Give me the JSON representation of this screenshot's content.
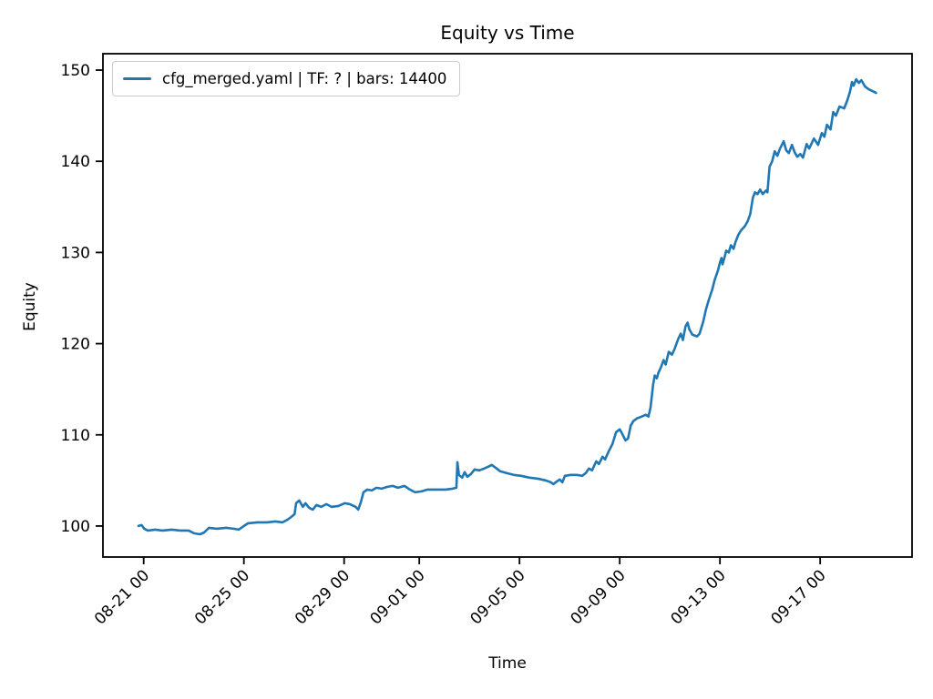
{
  "figure": {
    "background": "#ffffff",
    "frame_color": "#000000"
  },
  "chart_data": {
    "type": "line",
    "title": "Equity vs Time",
    "xlabel": "Time",
    "ylabel": "Equity",
    "grid": false,
    "legend_position": "upper left",
    "x_tick_labels": [
      "08-21 00",
      "08-25 00",
      "08-29 00",
      "09-01 00",
      "09-05 00",
      "09-09 00",
      "09-13 00",
      "09-17 00"
    ],
    "y_tick_labels": [
      "100",
      "110",
      "120",
      "130",
      "140",
      "150"
    ],
    "xlim": [
      "08-19 09:00",
      "09-20 16:00"
    ],
    "ylim": [
      96.6,
      151.8
    ],
    "series": [
      {
        "name": "cfg_merged.yaml | TF: ? | bars: 14400",
        "color": "#1f77b4",
        "points": [
          [
            "08-20 19:00",
            100.0
          ],
          [
            "08-20 22:00",
            100.1
          ],
          [
            "08-21 00:30",
            99.7
          ],
          [
            "08-21 04:00",
            99.5
          ],
          [
            "08-21 11:00",
            99.6
          ],
          [
            "08-21 18:00",
            99.5
          ],
          [
            "08-22 03:00",
            99.6
          ],
          [
            "08-22 11:00",
            99.5
          ],
          [
            "08-22 19:00",
            99.5
          ],
          [
            "08-23 00:30",
            99.2
          ],
          [
            "08-23 06:00",
            99.1
          ],
          [
            "08-23 10:00",
            99.3
          ],
          [
            "08-23 14:30",
            99.8
          ],
          [
            "08-23 22:00",
            99.7
          ],
          [
            "08-24 07:00",
            99.8
          ],
          [
            "08-24 14:00",
            99.7
          ],
          [
            "08-24 19:00",
            99.6
          ],
          [
            "08-25 00:00",
            100.0
          ],
          [
            "08-25 04:00",
            100.3
          ],
          [
            "08-25 13:00",
            100.4
          ],
          [
            "08-25 22:00",
            100.4
          ],
          [
            "08-26 06:00",
            100.5
          ],
          [
            "08-26 13:00",
            100.4
          ],
          [
            "08-26 18:00",
            100.7
          ],
          [
            "08-26 22:30",
            101.1
          ],
          [
            "08-27 00:30",
            101.3
          ],
          [
            "08-27 02:00",
            102.5
          ],
          [
            "08-27 05:00",
            102.8
          ],
          [
            "08-27 08:30",
            102.1
          ],
          [
            "08-27 11:00",
            102.5
          ],
          [
            "08-27 14:30",
            102.0
          ],
          [
            "08-27 18:00",
            101.8
          ],
          [
            "08-27 21:30",
            102.3
          ],
          [
            "08-28 02:00",
            102.1
          ],
          [
            "08-28 07:00",
            102.4
          ],
          [
            "08-28 12:00",
            102.1
          ],
          [
            "08-28 18:30",
            102.2
          ],
          [
            "08-29 00:30",
            102.5
          ],
          [
            "08-29 05:30",
            102.4
          ],
          [
            "08-29 11:00",
            102.1
          ],
          [
            "08-29 13:30",
            101.8
          ],
          [
            "08-29 16:00",
            102.6
          ],
          [
            "08-29 18:30",
            103.7
          ],
          [
            "08-29 22:00",
            104.0
          ],
          [
            "08-30 02:30",
            103.9
          ],
          [
            "08-30 07:00",
            104.2
          ],
          [
            "08-30 12:00",
            104.1
          ],
          [
            "08-30 17:30",
            104.3
          ],
          [
            "08-30 22:30",
            104.4
          ],
          [
            "08-31 03:30",
            104.2
          ],
          [
            "08-31 10:00",
            104.4
          ],
          [
            "08-31 15:00",
            104.0
          ],
          [
            "08-31 20:00",
            103.7
          ],
          [
            "09-01 02:00",
            103.8
          ],
          [
            "09-01 08:00",
            104.0
          ],
          [
            "09-01 17:00",
            104.0
          ],
          [
            "09-02 01:00",
            104.0
          ],
          [
            "09-02 08:00",
            104.1
          ],
          [
            "09-02 11:30",
            104.2
          ],
          [
            "09-02 12:30",
            107.0
          ],
          [
            "09-02 14:00",
            105.6
          ],
          [
            "09-02 17:00",
            105.3
          ],
          [
            "09-02 19:30",
            105.9
          ],
          [
            "09-02 22:00",
            105.4
          ],
          [
            "09-03 01:30",
            105.7
          ],
          [
            "09-03 05:00",
            106.2
          ],
          [
            "09-03 09:30",
            106.1
          ],
          [
            "09-03 14:00",
            106.3
          ],
          [
            "09-03 18:00",
            106.5
          ],
          [
            "09-03 21:30",
            106.7
          ],
          [
            "09-04 01:00",
            106.4
          ],
          [
            "09-04 05:30",
            106.0
          ],
          [
            "09-04 11:30",
            105.8
          ],
          [
            "09-04 18:30",
            105.6
          ],
          [
            "09-05 01:30",
            105.5
          ],
          [
            "09-05 09:30",
            105.3
          ],
          [
            "09-05 17:00",
            105.2
          ],
          [
            "09-06 01:00",
            105.0
          ],
          [
            "09-06 06:00",
            104.8
          ],
          [
            "09-06 08:30",
            104.6
          ],
          [
            "09-06 12:00",
            104.9
          ],
          [
            "09-06 14:30",
            105.1
          ],
          [
            "09-06 17:00",
            104.8
          ],
          [
            "09-06 19:30",
            105.5
          ],
          [
            "09-07 01:00",
            105.6
          ],
          [
            "09-07 07:00",
            105.6
          ],
          [
            "09-07 12:00",
            105.5
          ],
          [
            "09-07 15:30",
            105.8
          ],
          [
            "09-07 18:30",
            106.3
          ],
          [
            "09-07 21:30",
            106.1
          ],
          [
            "09-08 01:30",
            107.1
          ],
          [
            "09-08 04:00",
            106.8
          ],
          [
            "09-08 07:30",
            107.6
          ],
          [
            "09-08 10:00",
            107.3
          ],
          [
            "09-08 13:30",
            108.2
          ],
          [
            "09-08 17:00",
            109.0
          ],
          [
            "09-08 20:30",
            110.3
          ],
          [
            "09-09 00:00",
            110.6
          ],
          [
            "09-09 02:30",
            110.1
          ],
          [
            "09-09 05:30",
            109.4
          ],
          [
            "09-09 08:00",
            109.6
          ],
          [
            "09-09 10:30",
            111.0
          ],
          [
            "09-09 13:00",
            111.5
          ],
          [
            "09-09 16:30",
            111.8
          ],
          [
            "09-09 21:00",
            112.0
          ],
          [
            "09-10 01:00",
            112.2
          ],
          [
            "09-10 03:30",
            112.0
          ],
          [
            "09-10 05:30",
            113.0
          ],
          [
            "09-10 08:00",
            115.5
          ],
          [
            "09-10 09:30",
            116.5
          ],
          [
            "09-10 11:30",
            116.2
          ],
          [
            "09-10 13:00",
            116.8
          ],
          [
            "09-10 15:30",
            117.4
          ],
          [
            "09-10 18:00",
            118.2
          ],
          [
            "09-10 20:00",
            117.7
          ],
          [
            "09-10 23:00",
            119.1
          ],
          [
            "09-11 02:00",
            118.8
          ],
          [
            "09-11 04:30",
            119.4
          ],
          [
            "09-11 08:00",
            120.5
          ],
          [
            "09-11 10:30",
            121.1
          ],
          [
            "09-11 12:30",
            120.4
          ],
          [
            "09-11 15:00",
            121.9
          ],
          [
            "09-11 17:00",
            122.3
          ],
          [
            "09-11 18:30",
            121.6
          ],
          [
            "09-11 21:30",
            121.0
          ],
          [
            "09-12 02:00",
            120.8
          ],
          [
            "09-12 04:30",
            121.1
          ],
          [
            "09-12 08:00",
            122.4
          ],
          [
            "09-12 10:30",
            123.7
          ],
          [
            "09-12 13:00",
            124.7
          ],
          [
            "09-12 16:30",
            125.9
          ],
          [
            "09-12 19:00",
            127.0
          ],
          [
            "09-12 22:00",
            128.0
          ],
          [
            "09-13 00:00",
            128.9
          ],
          [
            "09-13 01:30",
            129.4
          ],
          [
            "09-13 02:30",
            128.7
          ],
          [
            "09-13 04:30",
            129.5
          ],
          [
            "09-13 06:00",
            130.2
          ],
          [
            "09-13 08:30",
            130.0
          ],
          [
            "09-13 10:30",
            130.8
          ],
          [
            "09-13 13:00",
            130.4
          ],
          [
            "09-13 15:00",
            131.2
          ],
          [
            "09-13 17:30",
            131.9
          ],
          [
            "09-13 20:00",
            132.4
          ],
          [
            "09-14 00:00",
            132.9
          ],
          [
            "09-14 02:30",
            133.4
          ],
          [
            "09-14 05:00",
            134.2
          ],
          [
            "09-14 07:30",
            136.0
          ],
          [
            "09-14 09:30",
            136.6
          ],
          [
            "09-14 12:00",
            136.4
          ],
          [
            "09-14 14:30",
            136.9
          ],
          [
            "09-14 17:00",
            136.4
          ],
          [
            "09-14 20:00",
            136.8
          ],
          [
            "09-14 21:30",
            136.6
          ],
          [
            "09-14 23:30",
            139.4
          ],
          [
            "09-15 02:00",
            140.0
          ],
          [
            "09-15 04:30",
            141.1
          ],
          [
            "09-15 07:00",
            140.6
          ],
          [
            "09-15 09:30",
            141.4
          ],
          [
            "09-15 13:00",
            142.2
          ],
          [
            "09-15 15:30",
            141.2
          ],
          [
            "09-15 18:00",
            140.9
          ],
          [
            "09-15 21:00",
            141.8
          ],
          [
            "09-15 23:30",
            141.0
          ],
          [
            "09-16 02:00",
            140.5
          ],
          [
            "09-16 05:00",
            140.8
          ],
          [
            "09-16 07:30",
            140.4
          ],
          [
            "09-16 11:00",
            141.9
          ],
          [
            "09-16 13:30",
            141.4
          ],
          [
            "09-16 18:00",
            142.5
          ],
          [
            "09-16 22:00",
            141.8
          ],
          [
            "09-17 01:30",
            143.1
          ],
          [
            "09-17 04:00",
            142.7
          ],
          [
            "09-17 06:30",
            144.0
          ],
          [
            "09-17 10:00",
            143.5
          ],
          [
            "09-17 12:30",
            145.4
          ],
          [
            "09-17 15:00",
            145.0
          ],
          [
            "09-17 18:30",
            146.0
          ],
          [
            "09-17 23:00",
            145.8
          ],
          [
            "09-18 02:00",
            146.7
          ],
          [
            "09-18 04:30",
            147.6
          ],
          [
            "09-18 06:30",
            148.7
          ],
          [
            "09-18 08:00",
            148.3
          ],
          [
            "09-18 10:30",
            149.0
          ],
          [
            "09-18 13:00",
            148.6
          ],
          [
            "09-18 15:30",
            148.9
          ],
          [
            "09-18 19:00",
            148.2
          ],
          [
            "09-18 22:30",
            147.9
          ],
          [
            "09-19 02:00",
            147.7
          ],
          [
            "09-19 05:30",
            147.5
          ]
        ]
      }
    ]
  }
}
